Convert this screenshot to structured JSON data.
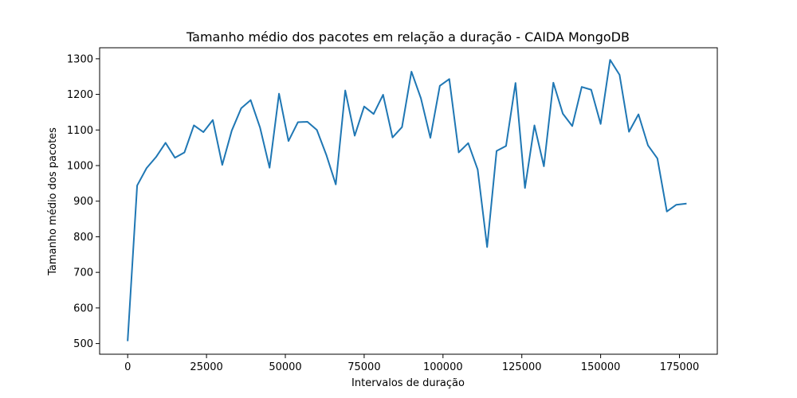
{
  "chart_data": {
    "type": "line",
    "title": "Tamanho médio dos pacotes em relação a duração - CAIDA MongoDB",
    "xlabel": "Intervalos de duração",
    "ylabel": "Tamanho médio dos pacotes",
    "xlim": [
      -8900,
      187000
    ],
    "ylim": [
      470,
      1331
    ],
    "xticks": [
      0,
      25000,
      50000,
      75000,
      100000,
      125000,
      150000,
      175000
    ],
    "yticks": [
      500,
      600,
      700,
      800,
      900,
      1000,
      1100,
      1200,
      1300
    ],
    "grid": false,
    "line_color": "#1f77b4",
    "series": [
      {
        "x": [
          0,
          3000,
          6000,
          9000,
          12000,
          15000,
          18000,
          21000,
          24000,
          27000,
          30000,
          33000,
          36000,
          39000,
          42000,
          45000,
          48000,
          51000,
          54000,
          57000,
          60000,
          63000,
          66000,
          69000,
          72000,
          75000,
          78000,
          81000,
          84000,
          87000,
          90000,
          93000,
          96000,
          99000,
          102000,
          105000,
          108000,
          111000,
          114000,
          117000,
          120000,
          123000,
          126000,
          129000,
          132000,
          135000,
          138000,
          141000,
          144000,
          147000,
          150000,
          153000,
          156000,
          159000,
          162000,
          165000,
          168000,
          171000,
          174000,
          177000
        ],
        "values": [
          509,
          944,
          993,
          1024,
          1064,
          1022,
          1037,
          1113,
          1094,
          1128,
          1002,
          1098,
          1161,
          1184,
          1106,
          994,
          1202,
          1069,
          1122,
          1123,
          1100,
          1030,
          947,
          1211,
          1084,
          1166,
          1145,
          1199,
          1079,
          1108,
          1264,
          1189,
          1078,
          1224,
          1243,
          1037,
          1063,
          989,
          771,
          1041,
          1055,
          1232,
          937,
          1113,
          998,
          1233,
          1146,
          1111,
          1221,
          1213,
          1117,
          1297,
          1255,
          1095,
          1144,
          1057,
          1020,
          871,
          890,
          893
        ]
      }
    ]
  }
}
